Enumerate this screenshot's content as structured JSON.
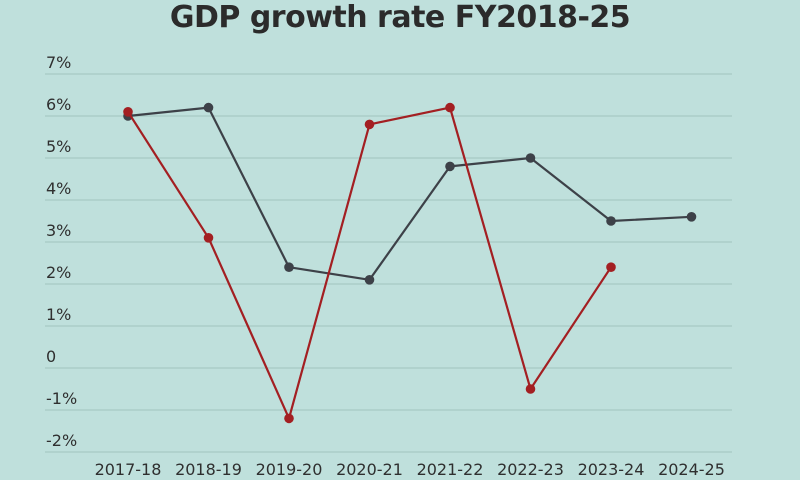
{
  "chart_data": {
    "type": "line",
    "title": "GDP growth rate FY2018-25",
    "xlabel": "",
    "ylabel": "",
    "categories": [
      "2017-18",
      "2018-19",
      "2019-20",
      "2020-21",
      "2021-22",
      "2022-23",
      "2023-24",
      "2024-25"
    ],
    "y_tick_labels": [
      "7%",
      "6%",
      "5%",
      "4%",
      "3%",
      "2%",
      "1%",
      "0",
      "-1%",
      "-2%"
    ],
    "y_tick_values": [
      7,
      6,
      5,
      4,
      3,
      2,
      1,
      0,
      -1,
      -2
    ],
    "ylim": [
      -2.3,
      7.3
    ],
    "grid": true,
    "legend": "none",
    "series": [
      {
        "color": "#3d4148",
        "values": [
          6.0,
          6.2,
          2.4,
          2.1,
          4.8,
          5.0,
          3.5,
          3.6
        ]
      },
      {
        "color": "#a31f22",
        "values": [
          6.1,
          3.1,
          -1.2,
          5.8,
          6.2,
          -0.5,
          2.4,
          null
        ]
      }
    ]
  }
}
